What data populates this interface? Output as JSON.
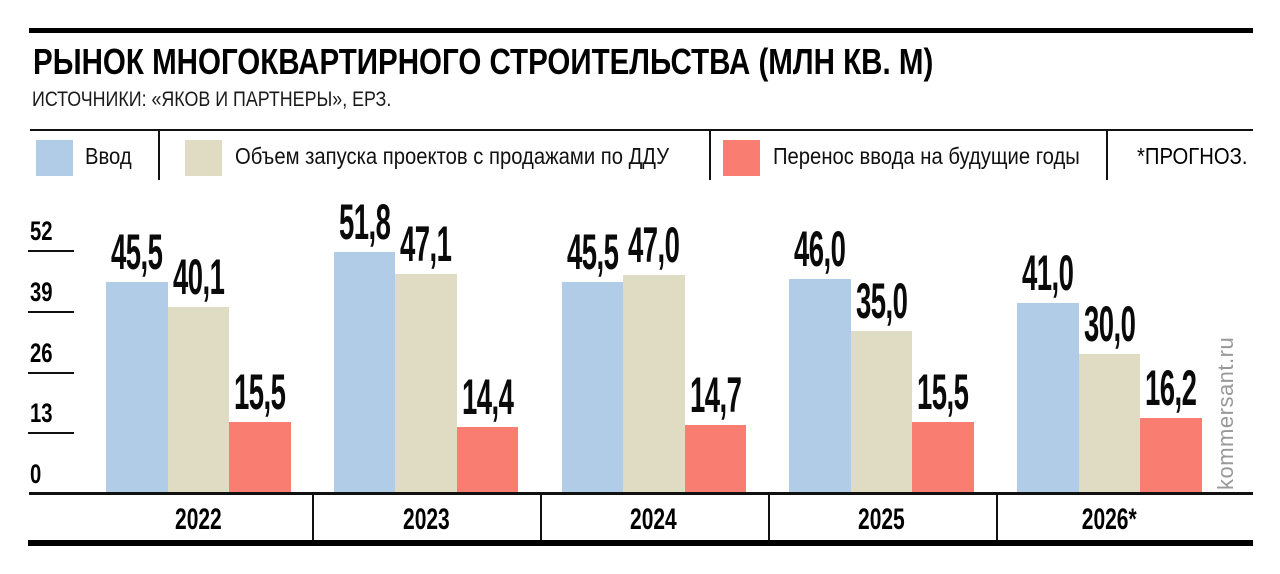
{
  "header": {
    "title": "РЫНОК МНОГОКВАРТИРНОГО СТРОИТЕЛЬСТВА (МЛН КВ. М)",
    "source": "ИСТОЧНИКИ: «ЯКОВ И ПАРТНЕРЫ», ЕРЗ."
  },
  "legend": {
    "items": [
      {
        "label": "Ввод",
        "color": "#b0cce6"
      },
      {
        "label": "Объем запуска проектов с продажами по ДДУ",
        "color": "#e0dcc4"
      },
      {
        "label": "Перенос ввода на будущие годы",
        "color": "#f97e71"
      }
    ],
    "note": "*ПРОГНОЗ."
  },
  "watermark": "kommersant.ru",
  "chart_data": {
    "type": "bar",
    "title": "РЫНОК МНОГОКВАРТИРНОГО СТРОИТЕЛЬСТВА (МЛН КВ. М)",
    "categories": [
      "2022",
      "2023",
      "2024",
      "2025",
      "2026*"
    ],
    "series": [
      {
        "name": "Ввод",
        "color": "#b0cce6",
        "values": [
          45.5,
          51.8,
          45.5,
          46.0,
          41.0
        ]
      },
      {
        "name": "Объем запуска проектов с продажами по ДДУ",
        "color": "#e0dcc4",
        "values": [
          40.1,
          47.1,
          47.0,
          35.0,
          30.0
        ]
      },
      {
        "name": "Перенос ввода на будущие годы",
        "color": "#f97e71",
        "values": [
          15.5,
          14.4,
          14.7,
          15.5,
          16.2
        ]
      }
    ],
    "yticks": [
      0,
      13,
      26,
      39,
      52
    ],
    "ylim": [
      0,
      56
    ],
    "xlabel": "",
    "ylabel": "",
    "grid": false,
    "legend_position": "top",
    "value_label_decimal_separator": ",",
    "forecast_note": "*ПРОГНОЗ.",
    "forecast_category": "2026*"
  }
}
